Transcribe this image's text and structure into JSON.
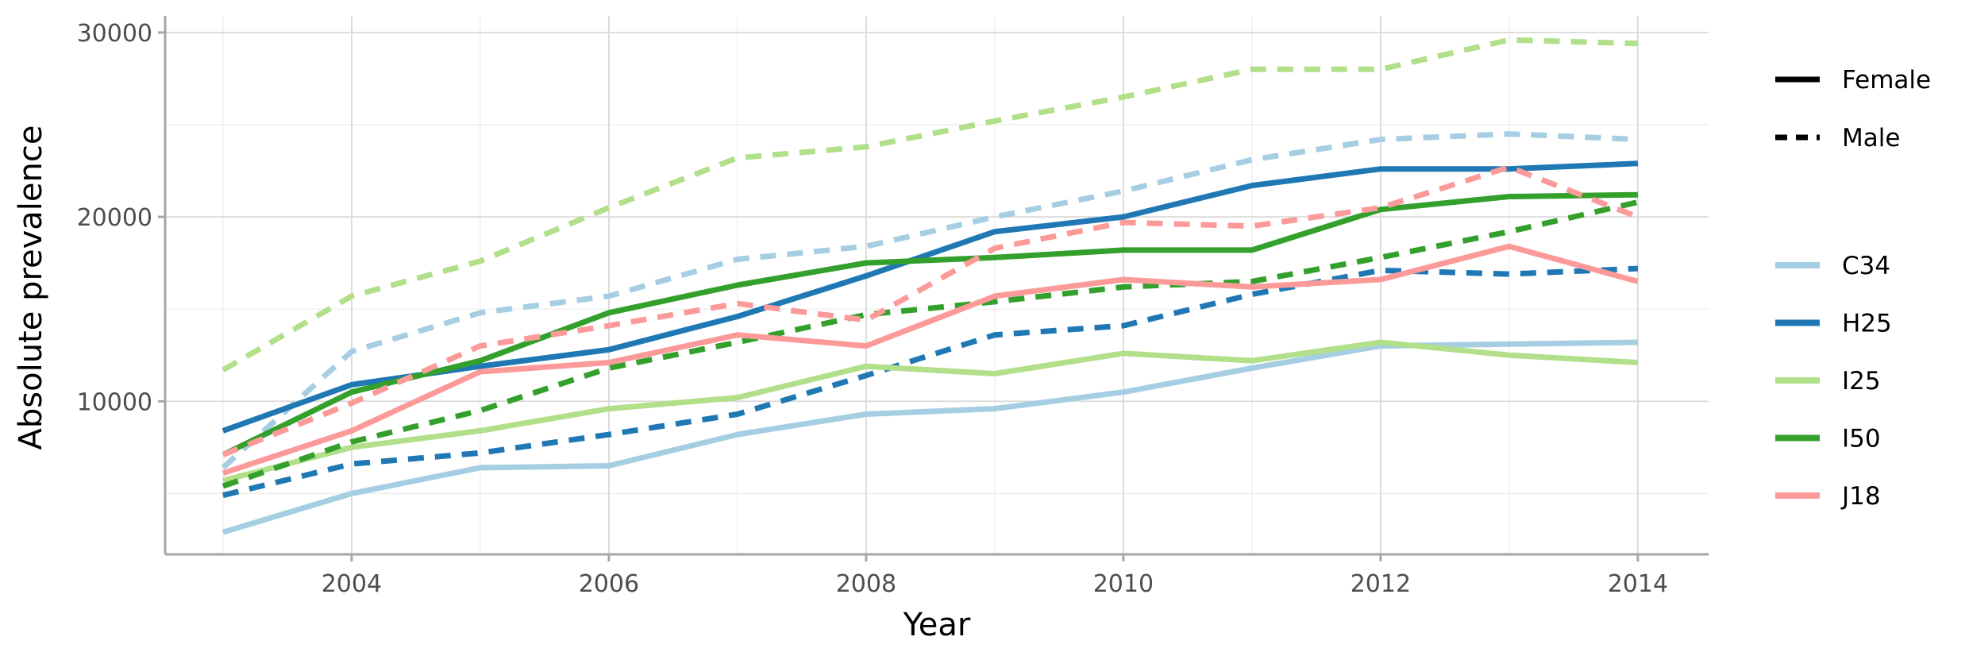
{
  "chart_data": {
    "type": "line",
    "title": "",
    "xlabel": "Year",
    "ylabel": "Absolute prevalence",
    "xlim": [
      2002.55,
      2014.55
    ],
    "ylim": [
      1700,
      30900
    ],
    "x_ticks": [
      2004,
      2006,
      2008,
      2010,
      2012,
      2014
    ],
    "x_tick_labels": [
      "2004",
      "2006",
      "2008",
      "2010",
      "2012",
      "2014"
    ],
    "y_ticks": [
      10000,
      20000,
      30000
    ],
    "y_tick_labels": [
      "10000",
      "20000",
      "30000"
    ],
    "x": [
      2003,
      2004,
      2005,
      2006,
      2007,
      2008,
      2009,
      2010,
      2011,
      2012,
      2013,
      2014
    ],
    "grid": true,
    "legend_position": "right",
    "sex_legend": [
      {
        "label": "Female",
        "linetype": "solid"
      },
      {
        "label": "Male",
        "linetype": "dashed"
      }
    ],
    "code_legend": [
      {
        "label": "C34",
        "color": "#a6cee3"
      },
      {
        "label": "H25",
        "color": "#1f78b4"
      },
      {
        "label": "I25",
        "color": "#b2df8a"
      },
      {
        "label": "I50",
        "color": "#33a02c"
      },
      {
        "label": "J18",
        "color": "#fb9a99"
      }
    ],
    "series": [
      {
        "code": "C34",
        "sex": "Female",
        "values": [
          2900,
          5000,
          6400,
          6500,
          8200,
          9300,
          9600,
          10500,
          11800,
          13000,
          13100,
          13200
        ]
      },
      {
        "code": "C34",
        "sex": "Male",
        "values": [
          6400,
          12700,
          14800,
          15700,
          17700,
          18400,
          20000,
          21400,
          23100,
          24200,
          24500,
          24200
        ]
      },
      {
        "code": "H25",
        "sex": "Female",
        "values": [
          8400,
          10900,
          11900,
          12800,
          14600,
          16800,
          19200,
          20000,
          21700,
          22600,
          22600,
          22900
        ]
      },
      {
        "code": "H25",
        "sex": "Male",
        "values": [
          4900,
          6600,
          7200,
          8200,
          9300,
          11400,
          13600,
          14100,
          15800,
          17100,
          16900,
          17200
        ]
      },
      {
        "code": "I25",
        "sex": "Female",
        "values": [
          5700,
          7500,
          8400,
          9600,
          10200,
          11900,
          11500,
          12600,
          12200,
          13200,
          12500,
          12100
        ]
      },
      {
        "code": "I25",
        "sex": "Male",
        "values": [
          11700,
          15700,
          17600,
          20500,
          23200,
          23800,
          25200,
          26500,
          28000,
          28000,
          29600,
          29400
        ]
      },
      {
        "code": "I50",
        "sex": "Female",
        "values": [
          7100,
          10500,
          12200,
          14800,
          16300,
          17500,
          17800,
          18200,
          18200,
          20400,
          21100,
          21200
        ]
      },
      {
        "code": "I50",
        "sex": "Male",
        "values": [
          5400,
          7800,
          9500,
          11800,
          13200,
          14700,
          15400,
          16200,
          16500,
          17800,
          19200,
          20800
        ]
      },
      {
        "code": "J18",
        "sex": "Female",
        "values": [
          6100,
          8400,
          11600,
          12100,
          13600,
          13000,
          15700,
          16600,
          16200,
          16600,
          18400,
          16500
        ]
      },
      {
        "code": "J18",
        "sex": "Male",
        "values": [
          7100,
          9900,
          13000,
          14100,
          15300,
          14400,
          18300,
          19700,
          19500,
          20500,
          22700,
          20000
        ]
      }
    ]
  }
}
